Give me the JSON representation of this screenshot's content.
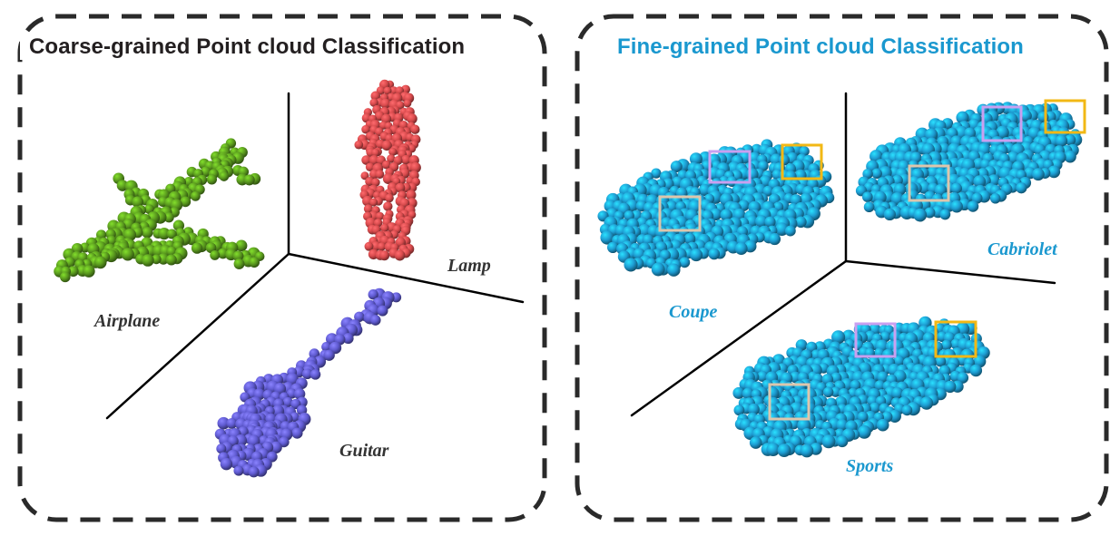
{
  "colors": {
    "coarse_title": "#231f20",
    "fine_title": "#1a98cf",
    "coarse_label": "#333333",
    "fine_label": "#1a98cf",
    "airplane": "#5a9a1e",
    "lamp": "#d74a4c",
    "guitar": "#5f5ad0",
    "car": "#1d9bd1",
    "box_violet": "#c9a0f0",
    "box_gold": "#f2b815",
    "box_beige": "#ddc6ad",
    "border": "#2a2a2a",
    "axis": "#000000"
  },
  "coarse_panel": {
    "title": "Coarse-grained Point cloud Classification",
    "labels": {
      "airplane": "Airplane",
      "lamp": "Lamp",
      "guitar": "Guitar"
    }
  },
  "fine_panel": {
    "title": "Fine-grained Point cloud Classification",
    "labels": {
      "coupe": "Coupe",
      "cabriolet": "Cabriolet",
      "sports": "Sports"
    }
  },
  "icons": [
    "airplane-point-cloud-icon",
    "lamp-point-cloud-icon",
    "guitar-point-cloud-icon",
    "car-point-cloud-icon"
  ]
}
